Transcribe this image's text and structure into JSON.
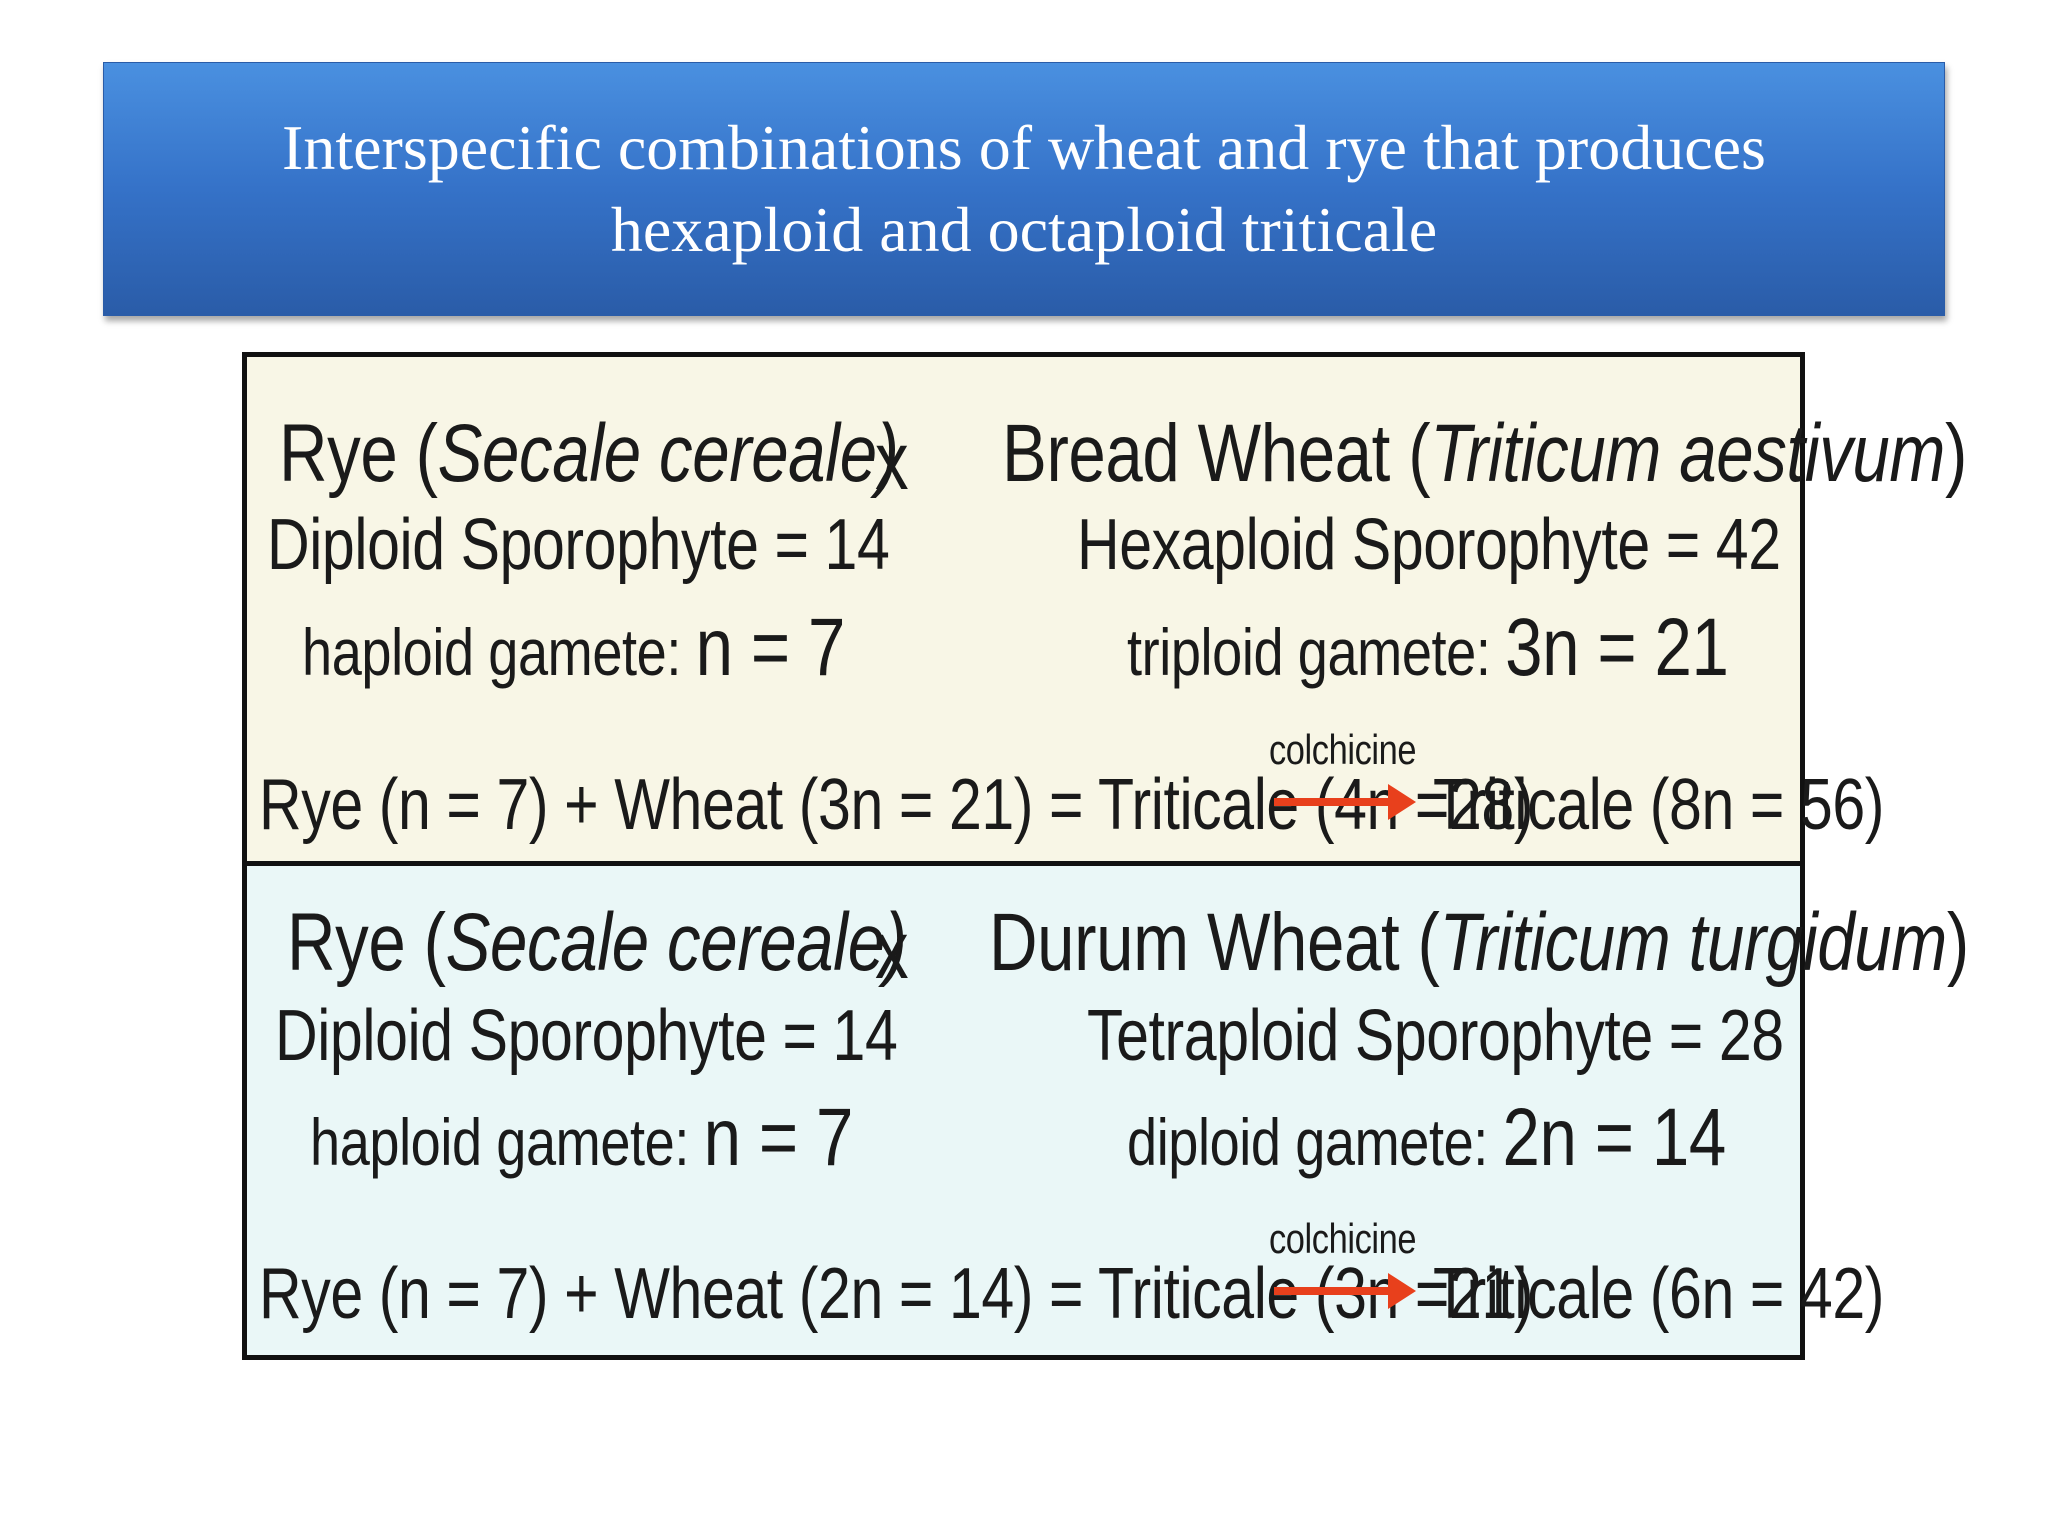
{
  "title": {
    "line1": "Interspecific combinations of wheat and rye that produces",
    "line2": "hexaploid and octaploid triticale"
  },
  "panel_top": {
    "left_name_prefix": "Rye (",
    "left_name_species": "Secale cereale)",
    "cross": "x",
    "right_name_prefix": "Bread Wheat (",
    "right_name_species": "Triticum aestivum",
    "right_name_suffix": ")",
    "left_sporophyte": "Diploid Sporophyte = 14",
    "right_sporophyte": "Hexaploid Sporophyte = 42",
    "left_gamete_label": "haploid gamete: ",
    "left_gamete_value": "n = 7",
    "right_gamete_label": "triploid gamete: ",
    "right_gamete_value": "3n = 21",
    "arrow_label": "colchicine",
    "equation_left": "Rye (n = 7) + Wheat (3n = 21) = Triticale (4n =28)",
    "equation_right": "Triticale (8n = 56)"
  },
  "panel_bottom": {
    "left_name_prefix": "Rye (",
    "left_name_species": "Secale cereale)",
    "cross": "x",
    "right_name_prefix": "Durum Wheat (",
    "right_name_species": "Triticum turgidum",
    "right_name_suffix": ")",
    "left_sporophyte": "Diploid Sporophyte = 14",
    "right_sporophyte": "Tetraploid Sporophyte = 28",
    "left_gamete_label": "haploid gamete: ",
    "left_gamete_value": "n = 7",
    "right_gamete_label": "diploid gamete: ",
    "right_gamete_value": "2n = 14",
    "arrow_label": "colchicine",
    "equation_left": "Rye (n = 7) + Wheat (2n = 14) = Triticale (3n =21)",
    "equation_right": "Triticale (6n = 42)"
  },
  "colors": {
    "title_bg": "#3572c8",
    "panel_top_bg": "#f8f6e6",
    "panel_bottom_bg": "#eaf7f7",
    "arrow": "#e8401c"
  }
}
